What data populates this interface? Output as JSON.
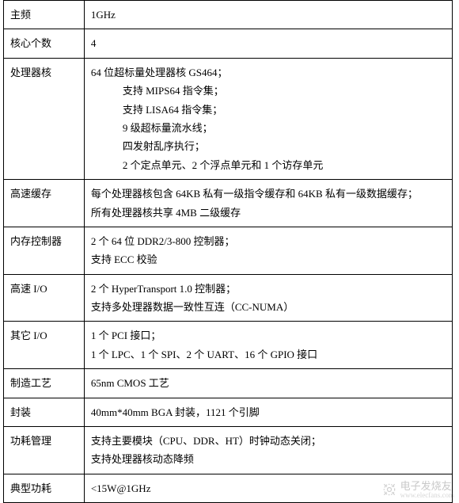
{
  "table": {
    "border_color": "#000000",
    "font_family": "SimSun",
    "label_col_width": 102,
    "value_col_width": 466,
    "rows": [
      {
        "label": "主频",
        "value_lines": [
          "1GHz"
        ]
      },
      {
        "label": "核心个数",
        "value_lines": [
          "4"
        ]
      },
      {
        "label": "处理器核",
        "value_lines": [
          "64 位超标量处理器核 GS464；",
          "支持 MIPS64 指令集；",
          "支持 LISA64 指令集；",
          "9 级超标量流水线；",
          "四发射乱序执行；",
          "2 个定点单元、2 个浮点单元和 1 个访存单元"
        ],
        "indent_from": 1
      },
      {
        "label": "高速缓存",
        "value_lines": [
          "每个处理器核包含 64KB 私有一级指令缓存和 64KB 私有一级数据缓存；",
          "所有处理器核共享 4MB 二级缓存"
        ]
      },
      {
        "label": "内存控制器",
        "value_lines": [
          "2 个 64 位 DDR2/3-800 控制器；",
          "支持 ECC 校验"
        ]
      },
      {
        "label": "高速 I/O",
        "value_lines": [
          "2 个 HyperTransport 1.0 控制器；",
          "支持多处理器数据一致性互连（CC-NUMA）"
        ]
      },
      {
        "label": "其它 I/O",
        "value_lines": [
          "1 个 PCI 接口；",
          "1 个 LPC、1 个 SPI、2 个 UART、16 个 GPIO 接口"
        ]
      },
      {
        "label": "制造工艺",
        "value_lines": [
          "65nm CMOS 工艺"
        ]
      },
      {
        "label": "封装",
        "value_lines": [
          "40mm*40mm BGA 封装，1121 个引脚"
        ]
      },
      {
        "label": "功耗管理",
        "value_lines": [
          "支持主要模块（CPU、DDR、HT）时钟动态关闭；",
          "支持处理器核动态降频"
        ]
      },
      {
        "label": "典型功耗",
        "value_lines": [
          "<15W@1GHz"
        ]
      }
    ]
  },
  "watermark": {
    "main_text": "电子发烧友",
    "url_text": "www.elecfans.com",
    "icon_color": "#888888"
  }
}
